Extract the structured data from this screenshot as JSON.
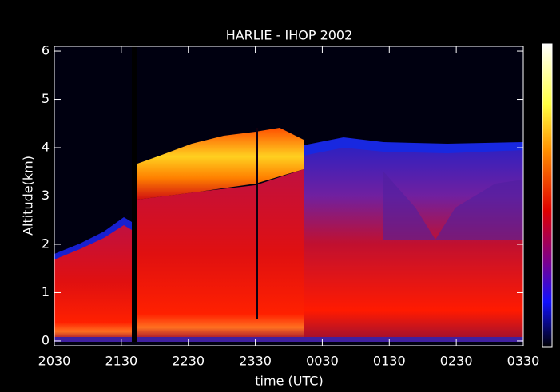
{
  "chart_data": {
    "type": "heatmap",
    "title": "HARLIE - IHOP 2002",
    "x_label": "time (UTC)",
    "y_label": "Altitude(km)",
    "xlim": [
      0,
      7
    ],
    "xticks": [
      {
        "value": 0,
        "label": "2030"
      },
      {
        "value": 1,
        "label": "2130"
      },
      {
        "value": 2,
        "label": "2230"
      },
      {
        "value": 3,
        "label": "2330"
      },
      {
        "value": 4,
        "label": "0030"
      },
      {
        "value": 5,
        "label": "0130"
      },
      {
        "value": 6,
        "label": "0230"
      },
      {
        "value": 7,
        "label": "0330"
      }
    ],
    "ylim": [
      -0.1,
      6.1
    ],
    "yticks": [
      0,
      1,
      2,
      3,
      4,
      5,
      6
    ]
  }
}
